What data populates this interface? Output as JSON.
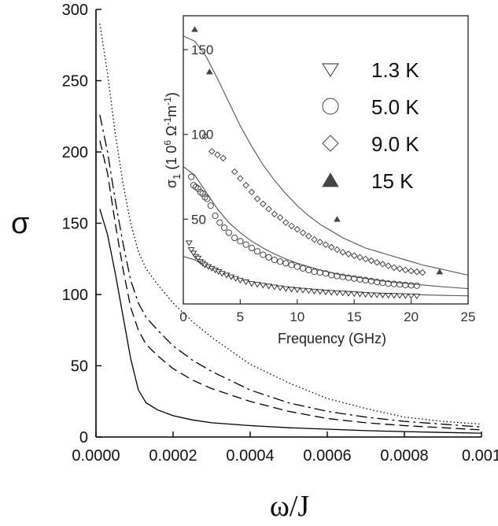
{
  "chart_data": [
    {
      "type": "line",
      "title": "",
      "xlabel": "ω/J",
      "ylabel": "σ",
      "xlim": [
        0,
        0.001
      ],
      "ylim": [
        0,
        300
      ],
      "xticks": [
        0,
        0.0002,
        0.0004,
        0.0006,
        0.0008,
        0.001
      ],
      "xtick_labels": [
        "0.0000",
        "0.0002",
        "0.0004",
        "0.0006",
        "0.0008",
        "0.001"
      ],
      "yticks": [
        0,
        50,
        100,
        150,
        200,
        250,
        300
      ],
      "ytick_labels": [
        "0",
        "50",
        "100",
        "150",
        "200",
        "250",
        "300"
      ],
      "grid": false,
      "series": [
        {
          "style": "solid",
          "x": [
            1e-05,
            3e-05,
            5e-05,
            7e-05,
            9e-05,
            0.00011,
            0.00013,
            0.00016,
            0.0002,
            0.00025,
            0.0003,
            0.0004,
            0.0005,
            0.0006,
            0.0007,
            0.0008,
            0.0009,
            0.001
          ],
          "y": [
            160,
            142,
            115,
            85,
            55,
            33,
            24,
            19,
            15,
            12,
            10,
            8,
            6.5,
            5.5,
            4.5,
            3.8,
            3.2,
            2.7
          ]
        },
        {
          "style": "dashed",
          "x": [
            1e-05,
            3e-05,
            5e-05,
            7e-05,
            9e-05,
            0.00011,
            0.00013,
            0.00016,
            0.0002,
            0.00025,
            0.0003,
            0.0004,
            0.0005,
            0.0006,
            0.0007,
            0.0008,
            0.0009,
            0.001
          ],
          "y": [
            208,
            185,
            150,
            118,
            91,
            75,
            65,
            57,
            48,
            40,
            34,
            25,
            18,
            13,
            10,
            8,
            6.5,
            5
          ]
        },
        {
          "style": "dashdot",
          "x": [
            1e-05,
            3e-05,
            5e-05,
            7e-05,
            9e-05,
            0.00011,
            0.00013,
            0.00016,
            0.0002,
            0.00025,
            0.0003,
            0.0004,
            0.0005,
            0.0006,
            0.0007,
            0.0008,
            0.0009,
            0.001
          ],
          "y": [
            226,
            200,
            166,
            136,
            110,
            94,
            84,
            75,
            64,
            54,
            46,
            33,
            24,
            18,
            14,
            11,
            9,
            7
          ]
        },
        {
          "style": "dotted",
          "x": [
            1e-05,
            3e-05,
            5e-05,
            7e-05,
            9e-05,
            0.00011,
            0.00013,
            0.00016,
            0.0002,
            0.00025,
            0.0003,
            0.0004,
            0.0005,
            0.0006,
            0.0007,
            0.0008,
            0.0009,
            0.001
          ],
          "y": [
            290,
            255,
            213,
            178,
            150,
            130,
            118,
            107,
            94,
            81,
            70,
            51,
            38,
            27,
            20,
            14,
            11,
            9
          ]
        }
      ]
    },
    {
      "type": "scatter",
      "title": "",
      "xlabel": "Frequency (GHz)",
      "ylabel": "σ1 (10^6 Ω^-1 m^-1)",
      "ylabel_parts": {
        "main": "σ",
        "sub": "1",
        "paren_open": " (1 0",
        "exp6": "6",
        "ohm": " Ω",
        "exp_neg1": "-1",
        "m": "m",
        "paren_close": ")"
      },
      "xlim": [
        0,
        25
      ],
      "ylim": [
        0,
        170
      ],
      "xticks": [
        0,
        5,
        10,
        15,
        20,
        25
      ],
      "xtick_labels": [
        "0",
        "5",
        "10",
        "15",
        "20",
        "25"
      ],
      "yticks": [
        50,
        100,
        150
      ],
      "ytick_labels": [
        "50",
        "100",
        "150"
      ],
      "legend_position": "top-right",
      "series": [
        {
          "name": "1.3  K",
          "marker": "triangle-down-open",
          "x": [
            0.5,
            0.7,
            0.9,
            1.1,
            1.3,
            1.5,
            1.7,
            1.9,
            2.2,
            2.5,
            2.8,
            3.1,
            3.4,
            3.8,
            4.2,
            4.6,
            5.0,
            5.5,
            6.0,
            6.5,
            7.0,
            7.5,
            8.0,
            8.5,
            9.0,
            9.5,
            10,
            10.5,
            11,
            11.5,
            12,
            12.5,
            13,
            13.5,
            14,
            14.5,
            15,
            15.5,
            16,
            16.5,
            17,
            17.5,
            18,
            18.5,
            19,
            19.5,
            20,
            20.5
          ],
          "y": [
            36,
            32,
            30,
            28,
            27,
            25,
            24,
            23,
            22,
            21,
            20,
            19,
            18,
            17,
            16,
            15,
            14,
            13,
            12,
            11.5,
            11,
            10.5,
            10,
            9.5,
            9,
            8.7,
            8.4,
            8.1,
            7.8,
            7.5,
            7.3,
            7,
            6.8,
            6.6,
            6.4,
            6.2,
            6,
            5.8,
            5.6,
            5.4,
            5.3,
            5.2,
            5.1,
            5,
            4.9,
            4.8,
            4.7,
            4.6
          ]
        },
        {
          "name": "5.0  K",
          "marker": "circle-open",
          "x": [
            0.7,
            0.9,
            1.1,
            1.3,
            1.5,
            1.7,
            1.9,
            2.1,
            2.4,
            2.8,
            3.2,
            3.6,
            4.0,
            4.5,
            5.0,
            5.5,
            6.0,
            6.5,
            7.0,
            7.5,
            8.0,
            8.5,
            9.0,
            9.5,
            10,
            10.5,
            11,
            11.5,
            12,
            12.5,
            13,
            13.5,
            14,
            14.5,
            15,
            15.5,
            16,
            16.5,
            17,
            17.5,
            18,
            18.5,
            19,
            19.5,
            20,
            20.5
          ],
          "y": [
            75,
            70,
            69,
            68,
            66,
            65,
            63,
            62,
            58,
            52,
            48,
            45,
            42,
            39,
            37,
            35,
            33,
            31,
            29,
            27.5,
            26,
            25,
            24,
            23,
            22,
            21,
            20,
            19,
            18.5,
            18,
            17,
            16.5,
            16,
            15.5,
            15,
            14.5,
            14,
            13.5,
            13,
            12.5,
            12,
            11.8,
            11.5,
            11.2,
            11,
            10.8
          ]
        },
        {
          "name": "9.0  K",
          "marker": "diamond-open",
          "x": [
            1.9,
            2.5,
            3.0,
            3.5,
            4.5,
            5.0,
            5.5,
            6.0,
            6.5,
            7.0,
            7.5,
            8.0,
            8.5,
            9.0,
            9.5,
            10,
            10.5,
            11,
            11.5,
            12,
            12.5,
            13,
            13.5,
            14,
            14.5,
            15,
            15.5,
            16,
            16.5,
            17,
            17.5,
            18,
            18.5,
            19,
            19.5,
            20,
            20.5,
            21
          ],
          "y": [
            99,
            90,
            88,
            86,
            78,
            74,
            70,
            66,
            62,
            59,
            56,
            53,
            51,
            48,
            46,
            44,
            42,
            40,
            38,
            36.5,
            35,
            33.5,
            32,
            30.5,
            29.5,
            28.5,
            27.5,
            26.5,
            25.5,
            24.5,
            23.5,
            22.5,
            21.5,
            20.8,
            20,
            19.5,
            19,
            18.5
          ]
        },
        {
          "name": "15  K",
          "marker": "triangle-up-filled",
          "x": [
            1.0,
            2.3,
            13.5,
            22.5
          ],
          "y": [
            162,
            137,
            50,
            19
          ]
        }
      ],
      "fit_curves": [
        {
          "x": [
            0,
            1,
            2,
            3,
            4,
            5,
            6,
            7,
            8,
            9,
            10,
            11,
            12,
            13,
            14,
            15,
            16,
            17,
            18,
            19,
            20,
            21,
            22,
            23,
            24,
            25
          ],
          "y": [
            158,
            155,
            146,
            133,
            119,
            105,
            93,
            82,
            73,
            65,
            58,
            52,
            47,
            43,
            39,
            36,
            33,
            31,
            29,
            27,
            25,
            23,
            21.5,
            20,
            18.5,
            17
          ]
        },
        {
          "x": [
            0,
            1,
            2,
            3,
            4,
            5,
            6,
            7,
            8,
            9,
            10,
            11,
            12,
            13,
            14,
            15,
            16,
            17,
            18,
            19,
            20,
            21,
            22,
            23,
            24,
            25
          ],
          "y": [
            81,
            76,
            66,
            56,
            48,
            42,
            37,
            33,
            29.5,
            26.5,
            24,
            22,
            20,
            18.5,
            17,
            16,
            15,
            14,
            13.2,
            12.5,
            11.8,
            11.2,
            10.6,
            10,
            9.5,
            9
          ]
        },
        {
          "x": [
            0,
            1,
            2,
            3,
            4,
            5,
            6,
            7,
            8,
            9,
            10,
            11,
            12,
            13,
            14,
            15,
            16,
            17,
            18,
            19,
            20,
            21,
            22,
            23,
            24,
            25
          ],
          "y": [
            28,
            26,
            22,
            19,
            16.5,
            14.5,
            13,
            11.8,
            10.8,
            10,
            9.3,
            8.7,
            8.2,
            7.7,
            7.3,
            6.9,
            6.6,
            6.3,
            6,
            5.8,
            5.6,
            5.4,
            5.2,
            5,
            4.9,
            4.8
          ]
        }
      ]
    }
  ]
}
